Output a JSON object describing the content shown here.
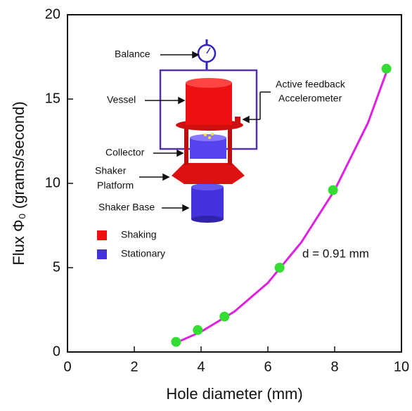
{
  "chart_data": {
    "type": "scatter",
    "x_label": "Hole diameter (mm)",
    "y_label": "Flux Φ₀ (grams/second)",
    "xlim": [
      0,
      10
    ],
    "xticks": [
      0,
      2,
      4,
      6,
      8,
      10
    ],
    "ylim": [
      0,
      20
    ],
    "yticks": [
      0,
      5,
      10,
      15,
      20
    ],
    "series": [
      {
        "color": "#33dd33",
        "x": [
          3.25,
          3.9,
          4.7,
          6.35,
          7.95,
          9.55
        ],
        "values": [
          0.6,
          1.3,
          2.1,
          5.0,
          9.6,
          16.8
        ]
      }
    ],
    "fit": {
      "color": "#e020e0",
      "x": [
        3.25,
        4,
        5,
        6,
        7,
        8,
        9,
        9.55
      ],
      "values": [
        0.55,
        1.2,
        2.4,
        4.1,
        6.5,
        9.6,
        13.6,
        16.6
      ]
    },
    "annotation": "d = 0.91 mm"
  },
  "diagram": {
    "labels": {
      "balance": "Balance",
      "vessel": "Vessel",
      "active_feedback": [
        "Active feedback",
        "Accelerometer"
      ],
      "collector": "Collector",
      "shaker_platform": [
        "Shaker",
        "Platform"
      ],
      "shaker_base": "Shaker Base"
    },
    "legend": [
      {
        "label": "Shaking",
        "color": "#ee1111"
      },
      {
        "label": "Stationary",
        "color": "#4433dd"
      }
    ]
  }
}
